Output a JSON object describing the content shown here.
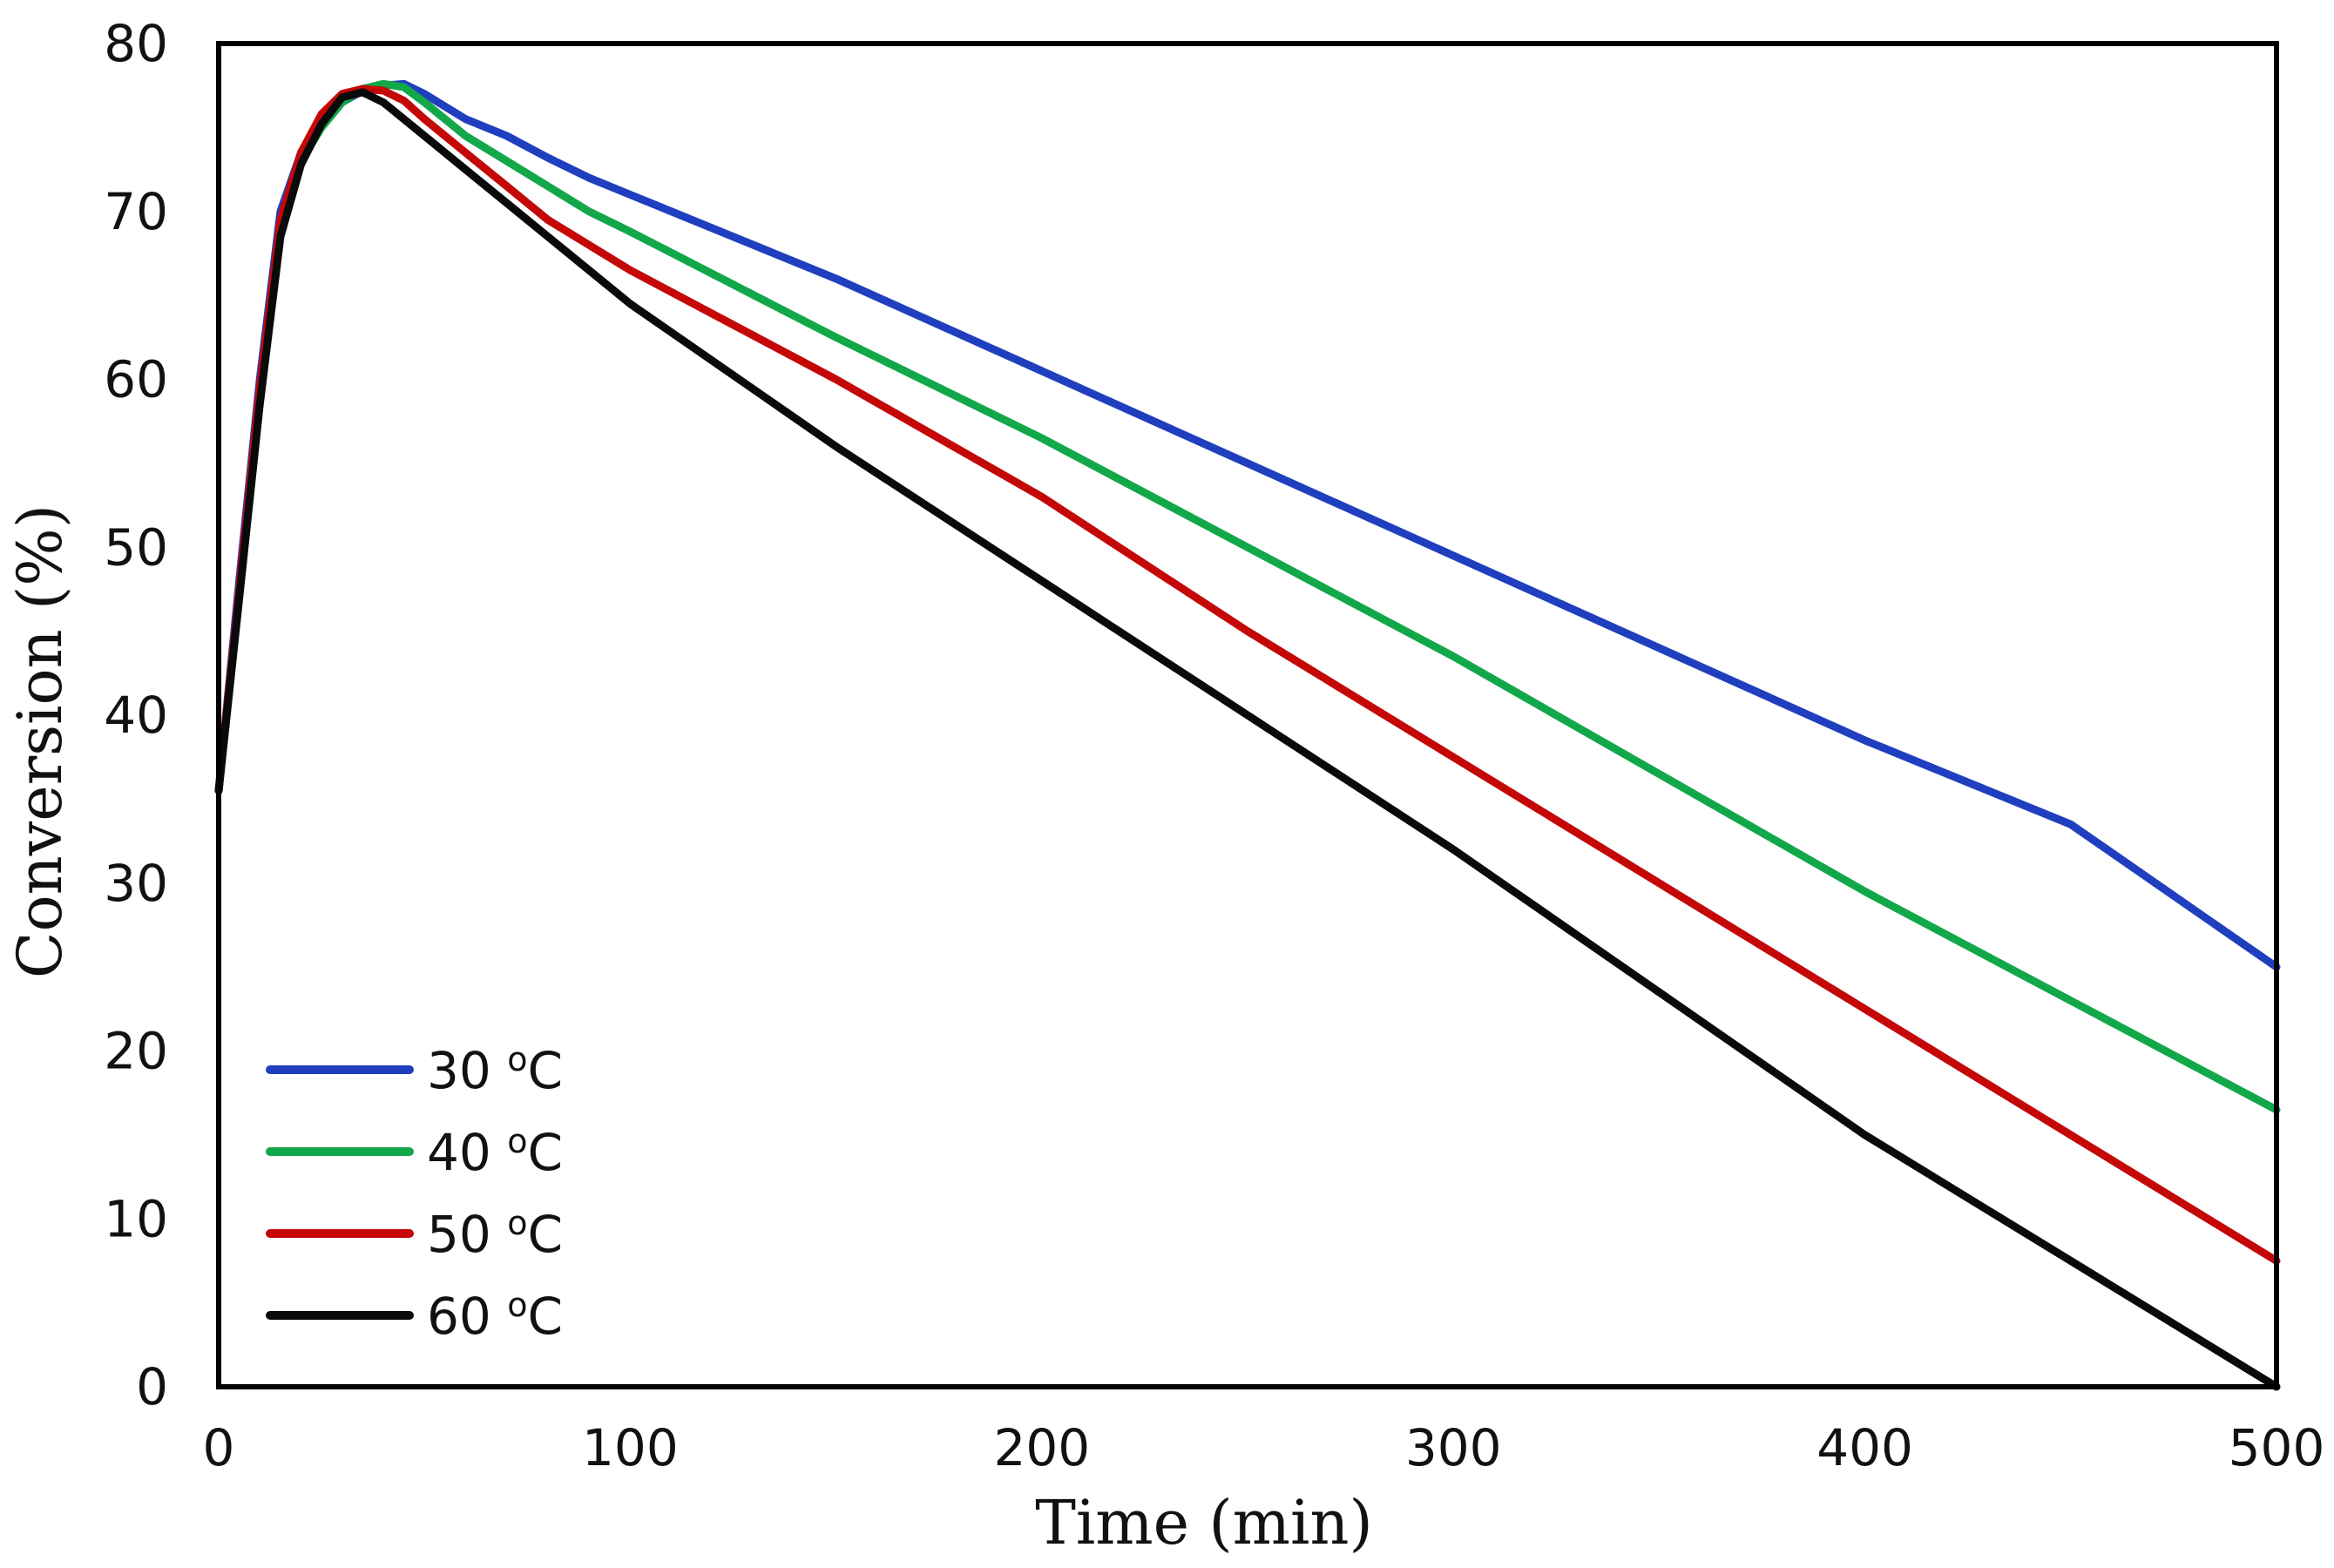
{
  "chart_data": {
    "type": "line",
    "title": "",
    "xlabel": "Time (min)",
    "ylabel": "Conversion (%)",
    "xlim": [
      0,
      500
    ],
    "ylim": [
      0,
      80
    ],
    "xticks": [
      0,
      100,
      200,
      300,
      400,
      500
    ],
    "yticks": [
      0,
      10,
      20,
      30,
      40,
      50,
      60,
      70,
      80
    ],
    "xtick_labels": [
      "0",
      "100",
      "200",
      "300",
      "400",
      "500"
    ],
    "ytick_labels": [
      "0",
      "10",
      "20",
      "30",
      "40",
      "50",
      "60",
      "70",
      "80"
    ],
    "grid": false,
    "legend_position": "bottom-left",
    "series": [
      {
        "name": "30 °C",
        "label_value": "30",
        "label_sup": "o",
        "label_unit": "C",
        "color": "#1f3fbf",
        "x": [
          0,
          5,
          10,
          15,
          20,
          25,
          30,
          35,
          40,
          45,
          50,
          60,
          70,
          80,
          90,
          100,
          150,
          200,
          250,
          300,
          350,
          400,
          450,
          500
        ],
        "y": [
          35.5,
          48,
          60,
          70,
          73.5,
          75.5,
          76.5,
          77.2,
          77.5,
          77.6,
          77.0,
          75.5,
          74.5,
          73.2,
          72.0,
          71.0,
          66.0,
          60.5,
          55.0,
          49.5,
          44.0,
          38.5,
          33.5,
          25.0
        ]
      },
      {
        "name": "40 °C",
        "label_value": "40",
        "label_sup": "o",
        "label_unit": "C",
        "color": "#12a84a",
        "x": [
          0,
          5,
          10,
          15,
          20,
          25,
          30,
          35,
          40,
          45,
          50,
          60,
          70,
          80,
          90,
          100,
          150,
          200,
          250,
          300,
          350,
          400,
          450,
          500
        ],
        "y": [
          35.5,
          47,
          59,
          69,
          73,
          75,
          76.5,
          77.3,
          77.6,
          77.4,
          76.5,
          74.5,
          73.0,
          71.5,
          70.0,
          68.8,
          62.5,
          56.5,
          50.0,
          43.5,
          36.5,
          29.5,
          23.0,
          16.5
        ]
      },
      {
        "name": "50 °C",
        "label_value": "50",
        "label_sup": "o",
        "label_unit": "C",
        "color": "#c40808",
        "x": [
          0,
          5,
          10,
          15,
          20,
          25,
          30,
          35,
          40,
          45,
          50,
          60,
          70,
          80,
          90,
          100,
          150,
          200,
          250,
          300,
          350,
          400,
          450,
          500
        ],
        "y": [
          35.5,
          47.5,
          59.5,
          69.5,
          73.5,
          75.8,
          77.0,
          77.3,
          77.2,
          76.6,
          75.5,
          73.5,
          71.5,
          69.5,
          68.0,
          66.5,
          60.0,
          53.0,
          45.0,
          37.5,
          30.0,
          22.5,
          15.0,
          7.5
        ]
      },
      {
        "name": "60 °C",
        "label_value": "60",
        "label_sup": "o",
        "label_unit": "C",
        "color": "#0a0a0a",
        "x": [
          0,
          5,
          10,
          15,
          20,
          25,
          30,
          35,
          40,
          50,
          60,
          70,
          80,
          90,
          100,
          150,
          200,
          250,
          300,
          350,
          400,
          450,
          500
        ],
        "y": [
          35.5,
          47,
          58.5,
          68.5,
          72.8,
          75.2,
          76.8,
          77.1,
          76.5,
          74.5,
          72.5,
          70.5,
          68.5,
          66.5,
          64.5,
          56.0,
          48.0,
          40.0,
          32.0,
          23.5,
          15.0,
          7.5,
          0.0
        ]
      }
    ]
  }
}
